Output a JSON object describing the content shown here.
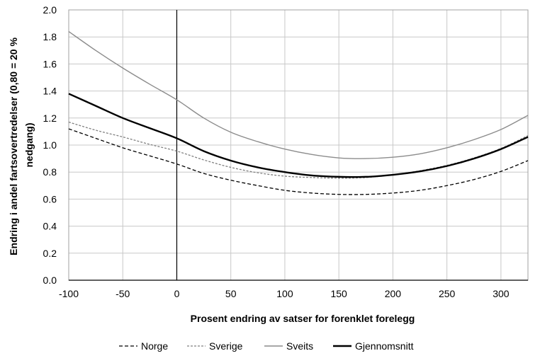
{
  "chart_data": {
    "type": "line",
    "xlabel": "Prosent endring av satser for forenklet forelegg",
    "ylabel_lines": [
      "Endring i andel fartsovertredelser (0,80 = 20 %",
      "nedgang)"
    ],
    "xlim": [
      -100,
      325
    ],
    "ylim": [
      0,
      2.0
    ],
    "xticks": [
      -100,
      -50,
      0,
      50,
      100,
      150,
      200,
      250,
      300
    ],
    "yticks": [
      0,
      0.2,
      0.4,
      0.6,
      0.8,
      1.0,
      1.2,
      1.4,
      1.6,
      1.8,
      2.0
    ],
    "ytick_labels": [
      "0.0",
      "0.2",
      "0.4",
      "0.6",
      "0.8",
      "1.0",
      "1.2",
      "1.4",
      "1.6",
      "1.8",
      "2.0"
    ],
    "xtick_labels": [
      "-100",
      "-50",
      "0",
      "50",
      "100",
      "150",
      "200",
      "250",
      "300"
    ],
    "grid": true,
    "legend_position": "bottom",
    "series": [
      {
        "name": "Norge",
        "color": "#000000",
        "style": "dashed",
        "points": [
          [
            -100,
            1.12
          ],
          [
            -75,
            1.05
          ],
          [
            -50,
            0.98
          ],
          [
            -25,
            0.92
          ],
          [
            0,
            0.86
          ],
          [
            25,
            0.79
          ],
          [
            50,
            0.74
          ],
          [
            75,
            0.7
          ],
          [
            100,
            0.665
          ],
          [
            125,
            0.645
          ],
          [
            150,
            0.635
          ],
          [
            175,
            0.635
          ],
          [
            200,
            0.645
          ],
          [
            225,
            0.665
          ],
          [
            250,
            0.7
          ],
          [
            275,
            0.745
          ],
          [
            300,
            0.805
          ],
          [
            325,
            0.885
          ]
        ]
      },
      {
        "name": "Sverige",
        "color": "#808080",
        "style": "dashed-fine",
        "points": [
          [
            -100,
            1.17
          ],
          [
            -75,
            1.11
          ],
          [
            -50,
            1.06
          ],
          [
            -25,
            1.005
          ],
          [
            0,
            0.955
          ],
          [
            25,
            0.89
          ],
          [
            50,
            0.835
          ],
          [
            75,
            0.795
          ],
          [
            100,
            0.77
          ],
          [
            125,
            0.76
          ],
          [
            150,
            0.755
          ],
          [
            175,
            0.76
          ],
          [
            200,
            0.78
          ],
          [
            225,
            0.81
          ],
          [
            250,
            0.85
          ],
          [
            275,
            0.905
          ],
          [
            300,
            0.975
          ],
          [
            325,
            1.07
          ]
        ]
      },
      {
        "name": "Sveits",
        "color": "#8c8c8c",
        "style": "solid",
        "points": [
          [
            -100,
            1.84
          ],
          [
            -75,
            1.7
          ],
          [
            -50,
            1.57
          ],
          [
            -25,
            1.45
          ],
          [
            0,
            1.335
          ],
          [
            25,
            1.2
          ],
          [
            50,
            1.095
          ],
          [
            75,
            1.025
          ],
          [
            100,
            0.97
          ],
          [
            125,
            0.93
          ],
          [
            150,
            0.905
          ],
          [
            175,
            0.9
          ],
          [
            200,
            0.91
          ],
          [
            225,
            0.935
          ],
          [
            250,
            0.98
          ],
          [
            275,
            1.04
          ],
          [
            300,
            1.115
          ],
          [
            325,
            1.22
          ]
        ]
      },
      {
        "name": "Gjennomsnitt",
        "color": "#000000",
        "style": "solid-bold",
        "points": [
          [
            -100,
            1.38
          ],
          [
            -75,
            1.29
          ],
          [
            -50,
            1.2
          ],
          [
            -25,
            1.125
          ],
          [
            0,
            1.05
          ],
          [
            25,
            0.955
          ],
          [
            50,
            0.885
          ],
          [
            75,
            0.835
          ],
          [
            100,
            0.8
          ],
          [
            125,
            0.775
          ],
          [
            150,
            0.765
          ],
          [
            175,
            0.765
          ],
          [
            200,
            0.78
          ],
          [
            225,
            0.805
          ],
          [
            250,
            0.845
          ],
          [
            275,
            0.9
          ],
          [
            300,
            0.97
          ],
          [
            325,
            1.06
          ]
        ]
      }
    ]
  }
}
